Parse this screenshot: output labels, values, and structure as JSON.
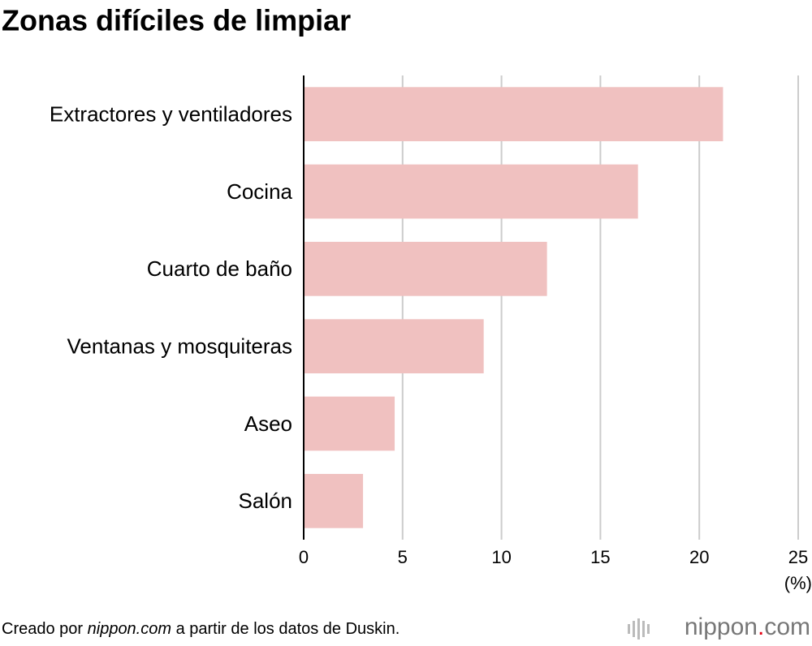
{
  "chart_data": {
    "type": "hbar",
    "title": "Zonas difíciles de limpiar",
    "categories": [
      "Extractores y ventiladores",
      "Cocina",
      "Cuarto de baño",
      "Ventanas y mosquiteras",
      "Aseo",
      "Salón"
    ],
    "values": [
      21.2,
      16.9,
      12.3,
      9.1,
      4.6,
      3.0
    ],
    "color": "#f0c1c0",
    "xlim": [
      0,
      25
    ],
    "xticks": [
      0,
      5,
      10,
      15,
      20,
      25
    ],
    "grid": true,
    "x_label": "(%)",
    "source": [
      "Creado por ",
      "nippon.com",
      " a partir de los datos de Duskin."
    ],
    "logo": [
      "nippon",
      ".",
      "com"
    ]
  }
}
